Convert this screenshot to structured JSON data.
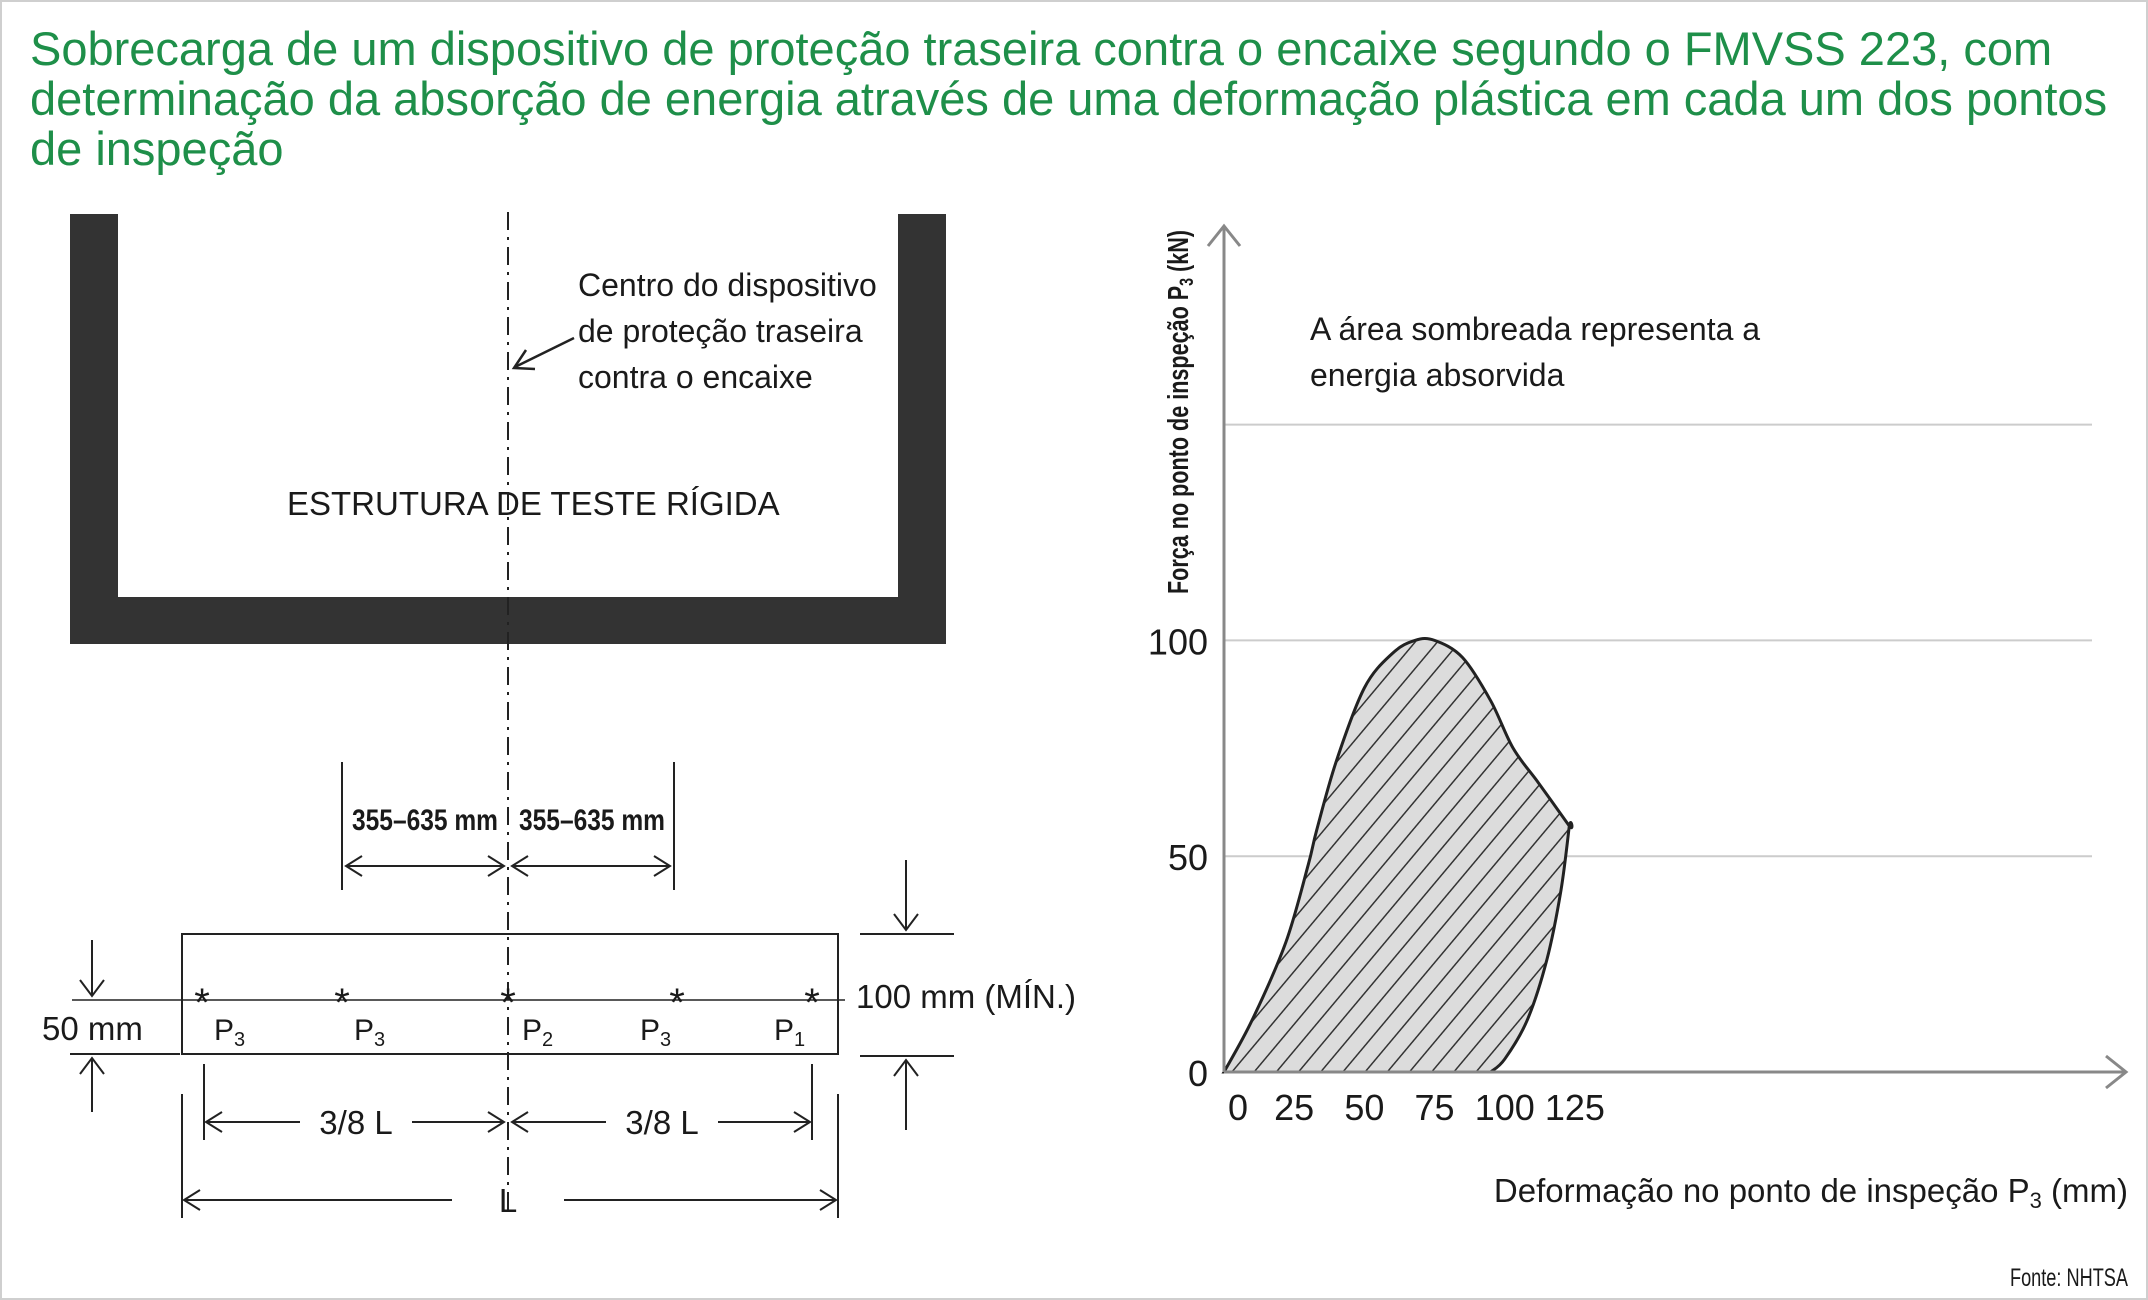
{
  "title": "Sobrecarga de um dispositivo de proteção traseira contra o encaixe segundo o FMVSS 223, com determinação da absorção de energia através de uma deformação plástica em cada um dos pontos de inspeção",
  "colors": {
    "title": "#1e8f49",
    "frame": "#333333",
    "grid": "#cccccc",
    "axis": "#888888"
  },
  "diagram": {
    "center_note": [
      "Centro do dispositivo",
      "de proteção traseira",
      "contra o encaixe"
    ],
    "structure_label": "ESTRUTURA DE TESTE RÍGIDA",
    "dim_left": "355–635 mm",
    "dim_right": "355–635 mm",
    "height_dim": "100 mm (MÍN.)",
    "offset_dim": "50 mm",
    "points": [
      {
        "label": "P",
        "sub": "3"
      },
      {
        "label": "P",
        "sub": "3"
      },
      {
        "label": "P",
        "sub": "2"
      },
      {
        "label": "P",
        "sub": "3"
      },
      {
        "label": "P",
        "sub": "1"
      }
    ],
    "left_span": "3/8 L",
    "right_span": "3/8 L",
    "length": "L"
  },
  "chart_data": {
    "type": "area",
    "annotation": [
      "A área sombreada representa a",
      "energia absorvida"
    ],
    "ylabel": "Força no ponto de inspeção P",
    "ylabel_sub": "3",
    "ylabel_unit": " (kN)",
    "xlabel": "Deformação no ponto de inspeção P",
    "xlabel_sub": "3",
    "xlabel_unit": " (mm)",
    "xticks": [
      0,
      25,
      50,
      75,
      100,
      125
    ],
    "yticks": [
      0,
      50,
      100
    ],
    "xlim": [
      0,
      155
    ],
    "ylim": [
      0,
      150
    ],
    "series": [
      {
        "loading": {
          "x": [
            0,
            10,
            22,
            30,
            33,
            40,
            50,
            60,
            68,
            75,
            85,
            95,
            103,
            112,
            123
          ],
          "y": [
            0,
            12,
            30,
            48,
            56,
            72,
            89,
            97,
            100,
            100,
            96,
            86,
            75,
            67,
            57
          ]
        },
        "unloading": {
          "x": [
            123,
            120,
            115,
            108,
            100,
            95
          ],
          "y": [
            57,
            42,
            26,
            12,
            3,
            0
          ]
        }
      }
    ]
  },
  "source": "Fonte: NHTSA"
}
